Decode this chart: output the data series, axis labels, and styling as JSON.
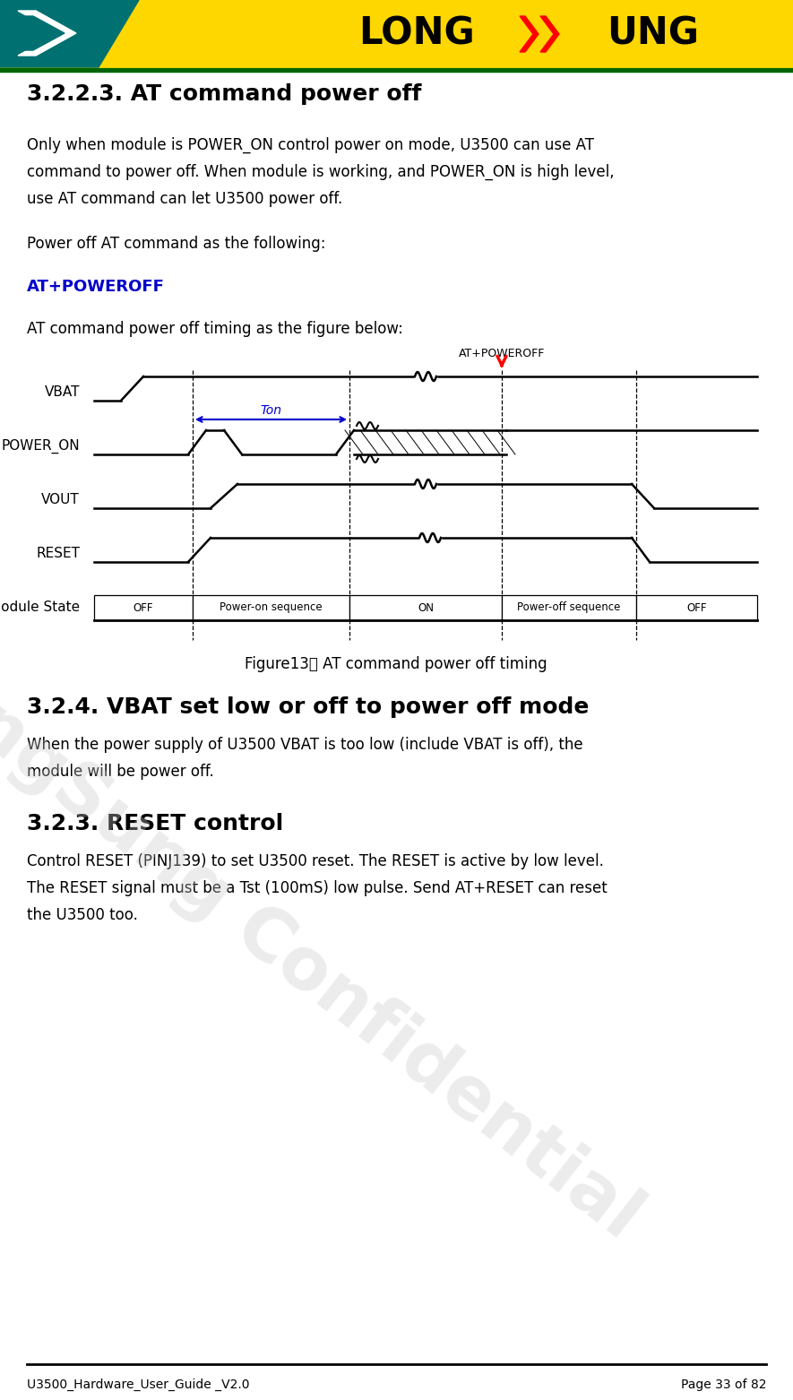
{
  "title_text": "3.2.2.3. AT command power off",
  "body_text_1_lines": [
    "Only when module is POWER_ON control power on mode, U3500 can use AT",
    "command to power off. When module is working, and POWER_ON is high level,",
    "use AT command can let U3500 power off."
  ],
  "body_text_2": "Power off AT command as the following:",
  "at_command": "AT+POWEROFF",
  "body_text_3": "AT command power off timing as the figure below:",
  "figure_caption": "Figure13： AT command power off timing",
  "section2_title": "3.2.4. VBAT set low or off to power off mode",
  "section2_body_lines": [
    "When the power supply of U3500 VBAT is too low (include VBAT is off), the",
    "module will be power off."
  ],
  "section3_title": "3.2.3. RESET control",
  "section3_body_lines": [
    "Control RESET (PINJ139) to set U3500 reset. The RESET is active by low level.",
    "The RESET signal must be a Tst (100mS) low pulse. Send AT+RESET can reset",
    "the U3500 too."
  ],
  "footer_left": "U3500_Hardware_User_Guide _V2.0",
  "footer_right": "Page 33 of 82",
  "diagram_signal_labels": [
    "VBAT",
    "POWER_ON",
    "VOUT",
    "RESET",
    "Module State"
  ],
  "diagram_state_labels": [
    "OFF",
    "Power-on sequence",
    "ON",
    "Power-off sequence",
    "OFF"
  ],
  "bg_color": "#ffffff",
  "blue_color": "#0000CC",
  "red_color": "#FF0000",
  "header_yellow": "#FFD700",
  "header_teal": "#007070",
  "header_green_line": "#006400"
}
